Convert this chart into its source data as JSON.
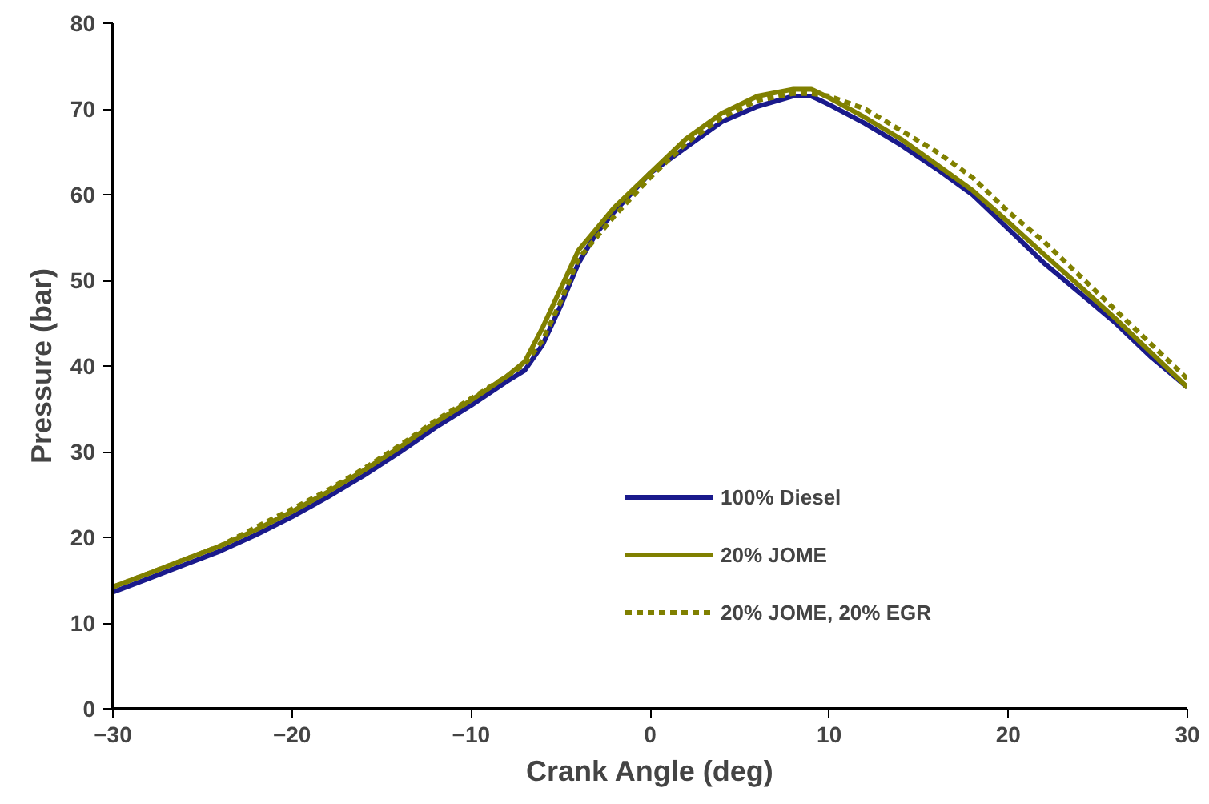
{
  "chart_data": {
    "type": "line",
    "xlabel": "Crank Angle (deg)",
    "ylabel": "Pressure (bar)",
    "x": [
      -30,
      -28,
      -26,
      -24,
      -22,
      -20,
      -18,
      -16,
      -14,
      -12,
      -10,
      -8,
      -7,
      -6,
      -5,
      -4,
      -3,
      -2,
      0,
      2,
      4,
      6,
      8,
      9,
      10,
      12,
      14,
      16,
      18,
      20,
      22,
      24,
      26,
      28,
      30
    ],
    "series": [
      {
        "name": "100% Diesel",
        "color": "#1a1a8c",
        "line_style": "solid",
        "values": [
          13.6,
          15.2,
          16.8,
          18.4,
          20.3,
          22.4,
          24.7,
          27.2,
          29.9,
          32.8,
          35.4,
          38.2,
          39.5,
          42.5,
          47,
          52,
          55.5,
          58,
          62.5,
          65.5,
          68.5,
          70.3,
          71.5,
          71.5,
          70.5,
          68.3,
          65.8,
          63,
          60,
          56,
          52,
          48.5,
          45,
          41,
          37.5
        ]
      },
      {
        "name": "20% JOME",
        "color": "#808000",
        "line_style": "solid",
        "values": [
          14.2,
          15.8,
          17.4,
          19,
          20.9,
          23,
          25.3,
          27.8,
          30.5,
          33.4,
          36,
          38.8,
          40.5,
          44.5,
          49,
          53.5,
          56,
          58.5,
          62.5,
          66.5,
          69.5,
          71.5,
          72.3,
          72.3,
          71.3,
          69,
          66.5,
          63.5,
          60.5,
          56.8,
          53,
          49.3,
          45.5,
          41.5,
          37.5
        ]
      },
      {
        "name": "20% JOME, 20% EGR",
        "color": "#808000",
        "line_style": "dashed",
        "values": [
          14.2,
          15.8,
          17.4,
          19,
          21.2,
          23.3,
          25.5,
          28,
          30.7,
          33.6,
          36.2,
          38.8,
          40.2,
          43,
          47.5,
          52.5,
          55,
          57.5,
          62,
          66,
          69,
          71,
          71.8,
          71.8,
          71.5,
          70,
          67.5,
          65,
          62,
          58,
          54.5,
          50.5,
          46.5,
          42.5,
          38.5
        ]
      }
    ],
    "xlim": [
      -30,
      30
    ],
    "xticks": [
      -30,
      -20,
      -10,
      0,
      10,
      20,
      30
    ],
    "ylim": [
      0,
      80
    ],
    "yticks": [
      0,
      10,
      20,
      30,
      40,
      50,
      60,
      70,
      80
    ],
    "grid": false,
    "legend": "bottom"
  }
}
